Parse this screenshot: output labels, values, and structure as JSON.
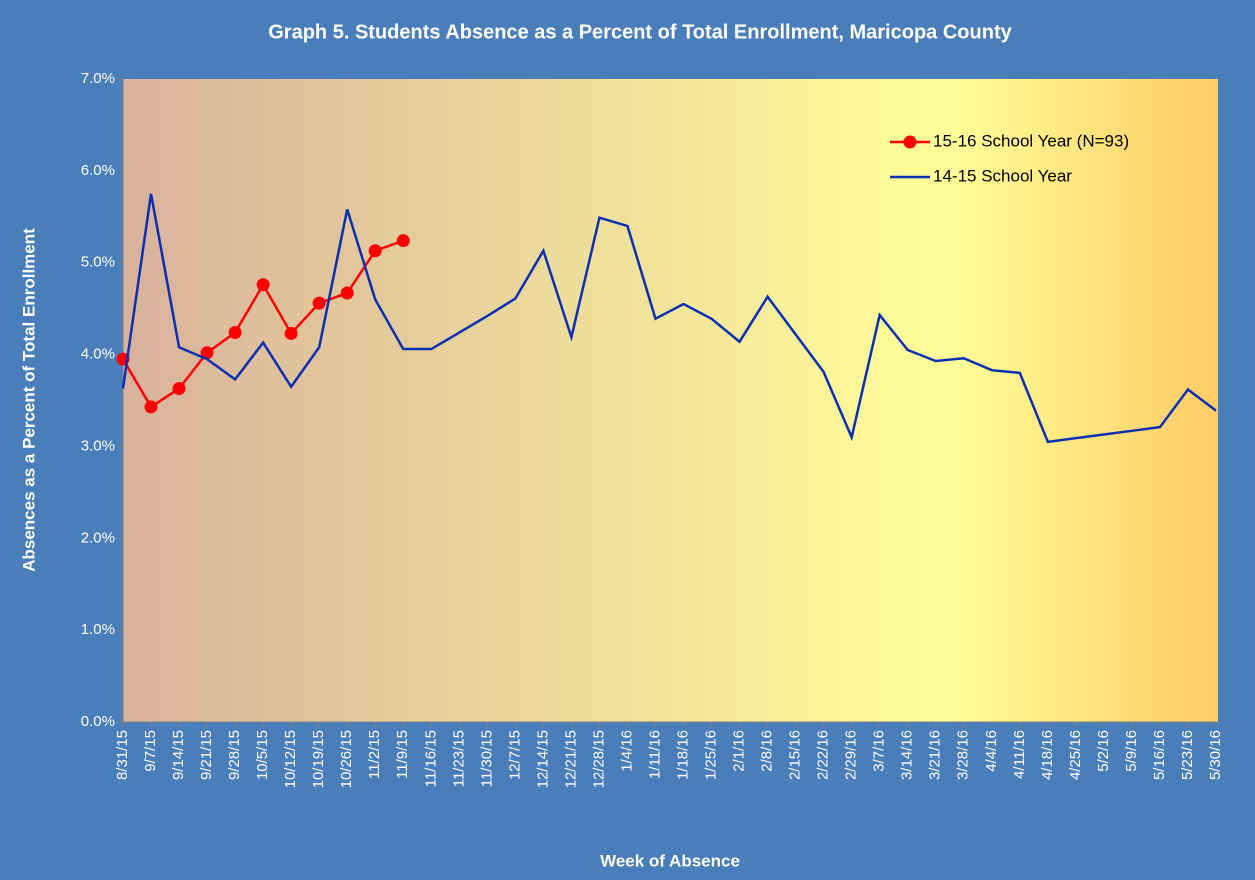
{
  "chart_data": {
    "type": "line",
    "title": "Graph 5. Students Absence as a Percent of Total Enrollment, Maricopa County",
    "x_label": "Week of Absence",
    "y_label": "Absences as a Percent of Total Enrollment",
    "categories": [
      "8/31/15",
      "9/7/15",
      "9/14/15",
      "9/21/15",
      "9/28/15",
      "10/5/15",
      "10/12/15",
      "10/19/15",
      "10/26/15",
      "11/2/15",
      "11/9/15",
      "11/16/15",
      "11/23/15",
      "11/30/15",
      "12/7/15",
      "12/14/15",
      "12/21/15",
      "12/28/15",
      "1/4/16",
      "1/11/16",
      "1/18/16",
      "1/25/16",
      "2/1/16",
      "2/8/16",
      "2/15/16",
      "2/22/16",
      "2/29/16",
      "3/7/16",
      "3/14/16",
      "3/21/16",
      "3/28/16",
      "4/4/16",
      "4/11/16",
      "4/18/16",
      "4/25/16",
      "5/2/16",
      "5/9/16",
      "5/16/16",
      "5/23/16",
      "5/30/16"
    ],
    "series": [
      {
        "name": "15-16 School Year (N=93)",
        "color": "#ff0000",
        "marker": true,
        "values": [
          3.95,
          3.43,
          3.63,
          4.02,
          4.24,
          4.76,
          4.23,
          4.56,
          4.67,
          5.13,
          5.24,
          null,
          null,
          null,
          null,
          null,
          null,
          null,
          null,
          null,
          null,
          null,
          null,
          null,
          null,
          null,
          null,
          null,
          null,
          null,
          null,
          null,
          null,
          null,
          null,
          null,
          null,
          null,
          null,
          null
        ]
      },
      {
        "name": "14-15 School Year",
        "color": "#0a2fb4",
        "marker": false,
        "values": [
          3.63,
          5.75,
          4.08,
          3.95,
          3.73,
          4.13,
          3.65,
          4.08,
          5.58,
          4.6,
          4.06,
          4.06,
          4.24,
          4.42,
          4.61,
          5.13,
          4.19,
          5.49,
          5.4,
          4.39,
          4.55,
          4.39,
          4.14,
          4.63,
          4.22,
          3.81,
          3.1,
          4.43,
          4.05,
          3.93,
          3.96,
          3.83,
          3.8,
          3.05,
          3.09,
          3.13,
          3.17,
          3.21,
          3.62,
          3.39
        ]
      }
    ],
    "ylim": [
      0,
      7
    ],
    "yticks": [
      {
        "value": 0,
        "label": "0.0%"
      },
      {
        "value": 1,
        "label": "1.0%"
      },
      {
        "value": 2,
        "label": "2.0%"
      },
      {
        "value": 3,
        "label": "3.0%"
      },
      {
        "value": 4,
        "label": "4.0%"
      },
      {
        "value": 5,
        "label": "5.0%"
      },
      {
        "value": 6,
        "label": "6.0%"
      },
      {
        "value": 7,
        "label": "7.0%"
      }
    ],
    "legend": "top-right"
  }
}
